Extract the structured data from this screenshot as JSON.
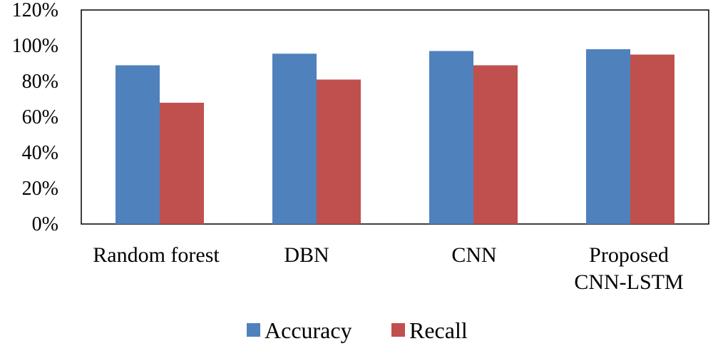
{
  "chart_data": {
    "type": "bar",
    "categories": [
      [
        "Random forest"
      ],
      [
        "DBN"
      ],
      [
        "CNN"
      ],
      [
        "Proposed",
        "CNN-LSTM"
      ]
    ],
    "series": [
      {
        "name": "Accuracy",
        "color": "#4f81bd",
        "values": [
          0.89,
          0.955,
          0.97,
          0.98
        ]
      },
      {
        "name": "Recall",
        "color": "#c0504d",
        "values": [
          0.68,
          0.81,
          0.89,
          0.95
        ]
      }
    ],
    "yticks": [
      "0%",
      "20%",
      "40%",
      "60%",
      "80%",
      "100%",
      "120%"
    ],
    "ylim": [
      0,
      1.2
    ],
    "grid": false,
    "legend_position": "bottom-center"
  }
}
